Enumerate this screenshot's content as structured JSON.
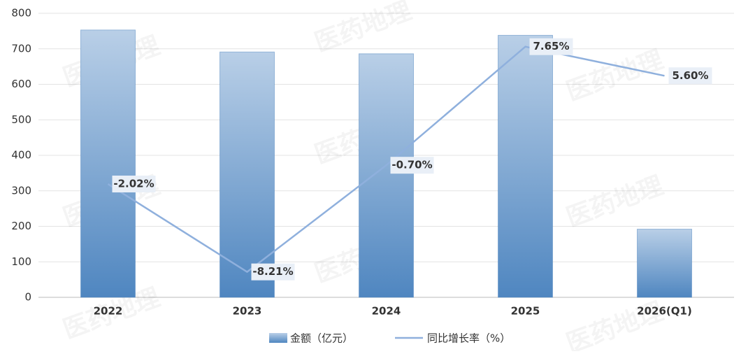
{
  "chart_data": {
    "type": "bar-line",
    "watermark": "医药地理",
    "categories": [
      "2022",
      "2023",
      "2024",
      "2025",
      "2026(Q1)"
    ],
    "series": [
      {
        "name": "金额（亿元）",
        "type": "bar",
        "color": "#4f86c0",
        "values": [
          753,
          691,
          686,
          738,
          192
        ]
      },
      {
        "name": "同比增长率（%）",
        "type": "line",
        "axis": "y2",
        "color": "#8fb0dd",
        "values": [
          -2.02,
          -8.21,
          -0.7,
          7.65,
          5.6
        ],
        "value_labels": [
          "-2.02%",
          "-8.21%",
          "-0.70%",
          "7.65%",
          "5.60%"
        ]
      }
    ],
    "ylim": [
      0,
      800
    ],
    "yticks": [
      0,
      100,
      200,
      300,
      400,
      500,
      600,
      700,
      800
    ],
    "y2lim": [
      -10,
      10
    ],
    "grid": true
  }
}
